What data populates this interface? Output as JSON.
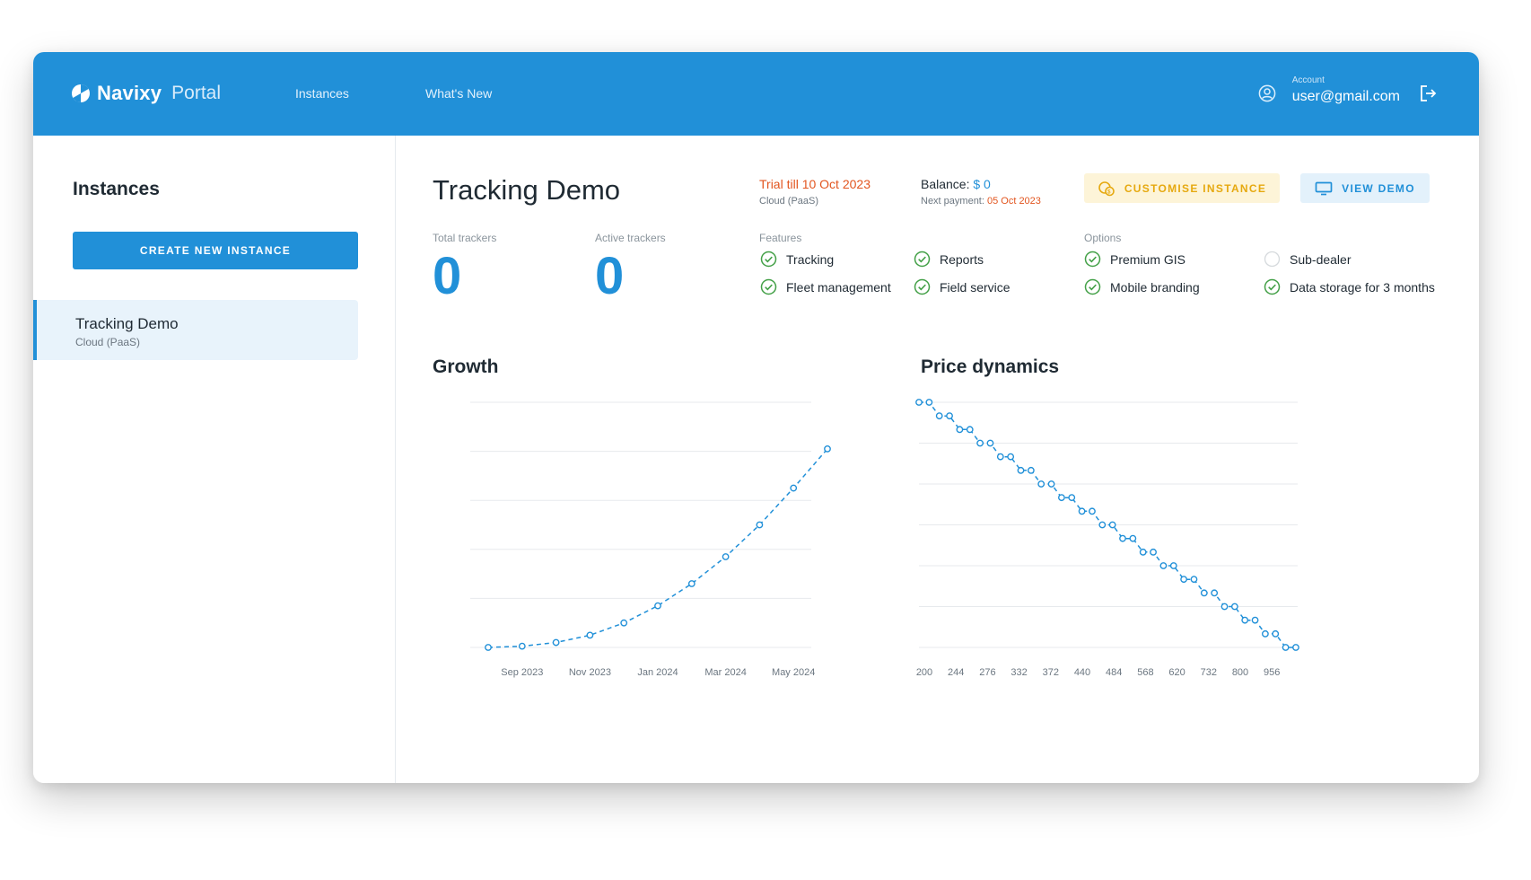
{
  "header": {
    "brand": "Navixy",
    "product": "Portal",
    "nav": [
      "Instances",
      "What's New"
    ],
    "account_label": "Account",
    "account_email": "user@gmail.com"
  },
  "sidebar": {
    "title": "Instances",
    "create_button": "CREATE NEW INSTANCE",
    "items": [
      {
        "name": "Tracking Demo",
        "type": "Cloud (PaaS)"
      }
    ]
  },
  "instance": {
    "title": "Tracking Demo",
    "trial": "Trial till 10 Oct 2023",
    "type": "Cloud (PaaS)",
    "balance_label": "Balance:",
    "balance_value": "$ 0",
    "next_payment_label": "Next payment:",
    "next_payment_date": "05 Oct 2023",
    "customise_button": "CUSTOMISE INSTANCE",
    "view_demo_button": "VIEW DEMO",
    "total_trackers_label": "Total trackers",
    "total_trackers": "0",
    "active_trackers_label": "Active trackers",
    "active_trackers": "0",
    "features_label": "Features",
    "features": [
      {
        "label": "Tracking",
        "enabled": true
      },
      {
        "label": "Reports",
        "enabled": true
      },
      {
        "label": "Fleet management",
        "enabled": true
      },
      {
        "label": "Field service",
        "enabled": true
      }
    ],
    "options_label": "Options",
    "options": [
      {
        "label": "Premium GIS",
        "enabled": true
      },
      {
        "label": "Sub-dealer",
        "enabled": false
      },
      {
        "label": "Mobile branding",
        "enabled": true
      },
      {
        "label": "Data storage for 3 months",
        "enabled": true
      }
    ]
  },
  "colors": {
    "primary": "#2190d8",
    "accent_orange": "#e2551f",
    "success_green": "#43a047",
    "warning_yellow": "#e6a910"
  },
  "chart_data": [
    {
      "type": "line",
      "title": "Growth",
      "x": [
        "Aug 2023",
        "Sep 2023",
        "Oct 2023",
        "Nov 2023",
        "Dec 2023",
        "Jan 2024",
        "Feb 2024",
        "Mar 2024",
        "Apr 2024",
        "May 2024",
        "Jun 2024"
      ],
      "x_tick_labels": [
        "Sep 2023",
        "Nov 2023",
        "Jan 2024",
        "Mar 2024",
        "May 2024"
      ],
      "series": [
        {
          "values": [
            0,
            0.5,
            2,
            5,
            10,
            17,
            26,
            37,
            50,
            65,
            81
          ]
        }
      ],
      "ylim": [
        0,
        100
      ],
      "grid": true,
      "line_style": "dashed",
      "markers": "circle"
    },
    {
      "type": "line",
      "title": "Price dynamics",
      "x_tick_labels": [
        "200",
        "244",
        "276",
        "332",
        "372",
        "440",
        "484",
        "568",
        "620",
        "732",
        "800",
        "956"
      ],
      "series": [
        {
          "values": [
            15.0,
            15.0,
            14.5,
            14.5,
            14.0,
            14.0,
            13.5,
            13.5,
            13.0,
            13.0,
            12.5,
            12.5,
            12.0,
            12.0,
            11.5,
            11.5,
            11.0,
            11.0,
            10.5,
            10.5,
            10.0,
            10.0,
            9.5,
            9.5,
            9.0,
            9.0,
            8.5,
            8.5,
            8.0,
            8.0,
            7.5,
            7.5,
            7.0,
            7.0,
            6.5,
            6.5,
            6.0,
            6.0
          ]
        }
      ],
      "ylim": [
        6,
        15
      ],
      "grid": true,
      "line_style": "dashed",
      "markers": "circle"
    }
  ]
}
